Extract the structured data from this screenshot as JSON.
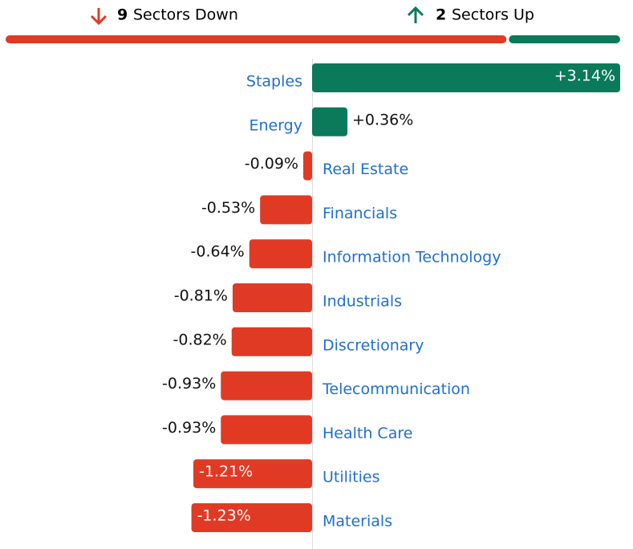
{
  "chart_data": {
    "type": "diverging-bar",
    "summary": {
      "down": {
        "count": 9,
        "label": "Sectors Down",
        "color": "#e03a25"
      },
      "up": {
        "count": 2,
        "label": "Sectors Up",
        "color": "#0a7a5a"
      }
    },
    "categories": [
      "Staples",
      "Energy",
      "Real Estate",
      "Financials",
      "Information Technology",
      "Industrials",
      "Discretionary",
      "Telecommunication",
      "Health Care",
      "Utilities",
      "Materials"
    ],
    "values": [
      3.14,
      0.36,
      -0.09,
      -0.53,
      -0.64,
      -0.81,
      -0.82,
      -0.93,
      -0.93,
      -1.21,
      -1.23
    ],
    "value_labels": [
      "+3.14%",
      "+0.36%",
      "-0.09%",
      "-0.53%",
      "-0.64%",
      "-0.81%",
      "-0.82%",
      "-0.93%",
      "-0.93%",
      "-1.21%",
      "-1.23%"
    ],
    "positive_color": "#0a7a5a",
    "negative_color": "#e03a25"
  }
}
